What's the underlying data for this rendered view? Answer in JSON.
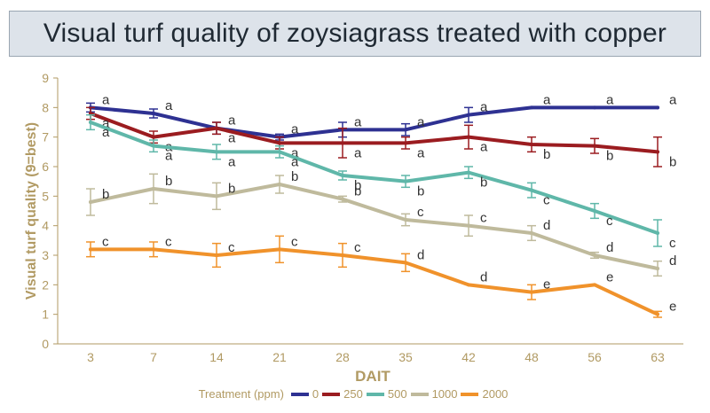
{
  "header": {
    "title": "Visual turf quality of zoysiagrass treated with copper"
  },
  "legend": {
    "title": "Treatment (ppm)"
  },
  "colors": {
    "s0": "#2e3192",
    "s250": "#9b1c20",
    "s500": "#5fb7a9",
    "s1000": "#bfba9c",
    "s2000": "#f0922b",
    "axis": "#b19a63",
    "label": "#333333"
  },
  "chart_data": {
    "type": "line",
    "title": "Visual turf quality of zoysiagrass treated with copper",
    "xlabel": "DAIT",
    "ylabel": "Visual turf quality (9=best)",
    "x": [
      "3",
      "7",
      "14",
      "21",
      "28",
      "35",
      "42",
      "48",
      "56",
      "63"
    ],
    "ylim": [
      0,
      9
    ],
    "yticks": [
      0,
      1,
      2,
      3,
      4,
      5,
      6,
      7,
      8,
      9
    ],
    "legend_title": "Treatment (ppm)",
    "series": [
      {
        "name": "0",
        "values": [
          8.0,
          7.8,
          7.3,
          7.0,
          7.25,
          7.25,
          7.75,
          8.0,
          8.0,
          8.0
        ],
        "errors": [
          0.15,
          0.15,
          0.2,
          0.1,
          0.25,
          0.2,
          0.25,
          0,
          0,
          0
        ],
        "letters": [
          "a",
          "a",
          "a",
          "a",
          "a",
          "a",
          "a",
          "a",
          "a",
          "a"
        ]
      },
      {
        "name": "250",
        "values": [
          7.8,
          7.0,
          7.3,
          6.8,
          6.8,
          6.8,
          7.0,
          6.75,
          6.7,
          6.5
        ],
        "errors": [
          0.2,
          0.2,
          0.2,
          0.2,
          0.5,
          0.2,
          0.4,
          0.25,
          0.25,
          0.5
        ],
        "letters": [
          "a",
          "a",
          "a",
          "a",
          "a",
          "a",
          "a",
          "b",
          "b",
          "b"
        ]
      },
      {
        "name": "500",
        "values": [
          7.5,
          6.7,
          6.5,
          6.5,
          5.7,
          5.5,
          5.8,
          5.2,
          4.5,
          3.75
        ],
        "errors": [
          0.25,
          0.2,
          0.25,
          0.2,
          0.15,
          0.2,
          0.2,
          0.25,
          0.25,
          0.45
        ],
        "letters": [
          "a",
          "a",
          "a",
          "a",
          "b",
          "b",
          "b",
          "c",
          "c",
          "c"
        ]
      },
      {
        "name": "1000",
        "values": [
          4.8,
          5.25,
          5.0,
          5.4,
          4.9,
          4.2,
          4.0,
          3.75,
          3.0,
          2.55
        ],
        "errors": [
          0.45,
          0.5,
          0.45,
          0.3,
          0.1,
          0.2,
          0.35,
          0.25,
          0.1,
          0.25
        ],
        "letters": [
          "b",
          "b",
          "b",
          "b",
          "b",
          "c",
          "c",
          "d",
          "d",
          "d"
        ]
      },
      {
        "name": "2000",
        "values": [
          3.2,
          3.2,
          3.0,
          3.2,
          3.0,
          2.75,
          2.0,
          1.75,
          2.0,
          1.0
        ],
        "errors": [
          0.25,
          0.25,
          0.4,
          0.45,
          0.4,
          0.3,
          0,
          0.25,
          0,
          0.1
        ],
        "letters": [
          "c",
          "c",
          "c",
          "c",
          "c",
          "d",
          "d",
          "e",
          "e",
          "e"
        ]
      }
    ]
  }
}
